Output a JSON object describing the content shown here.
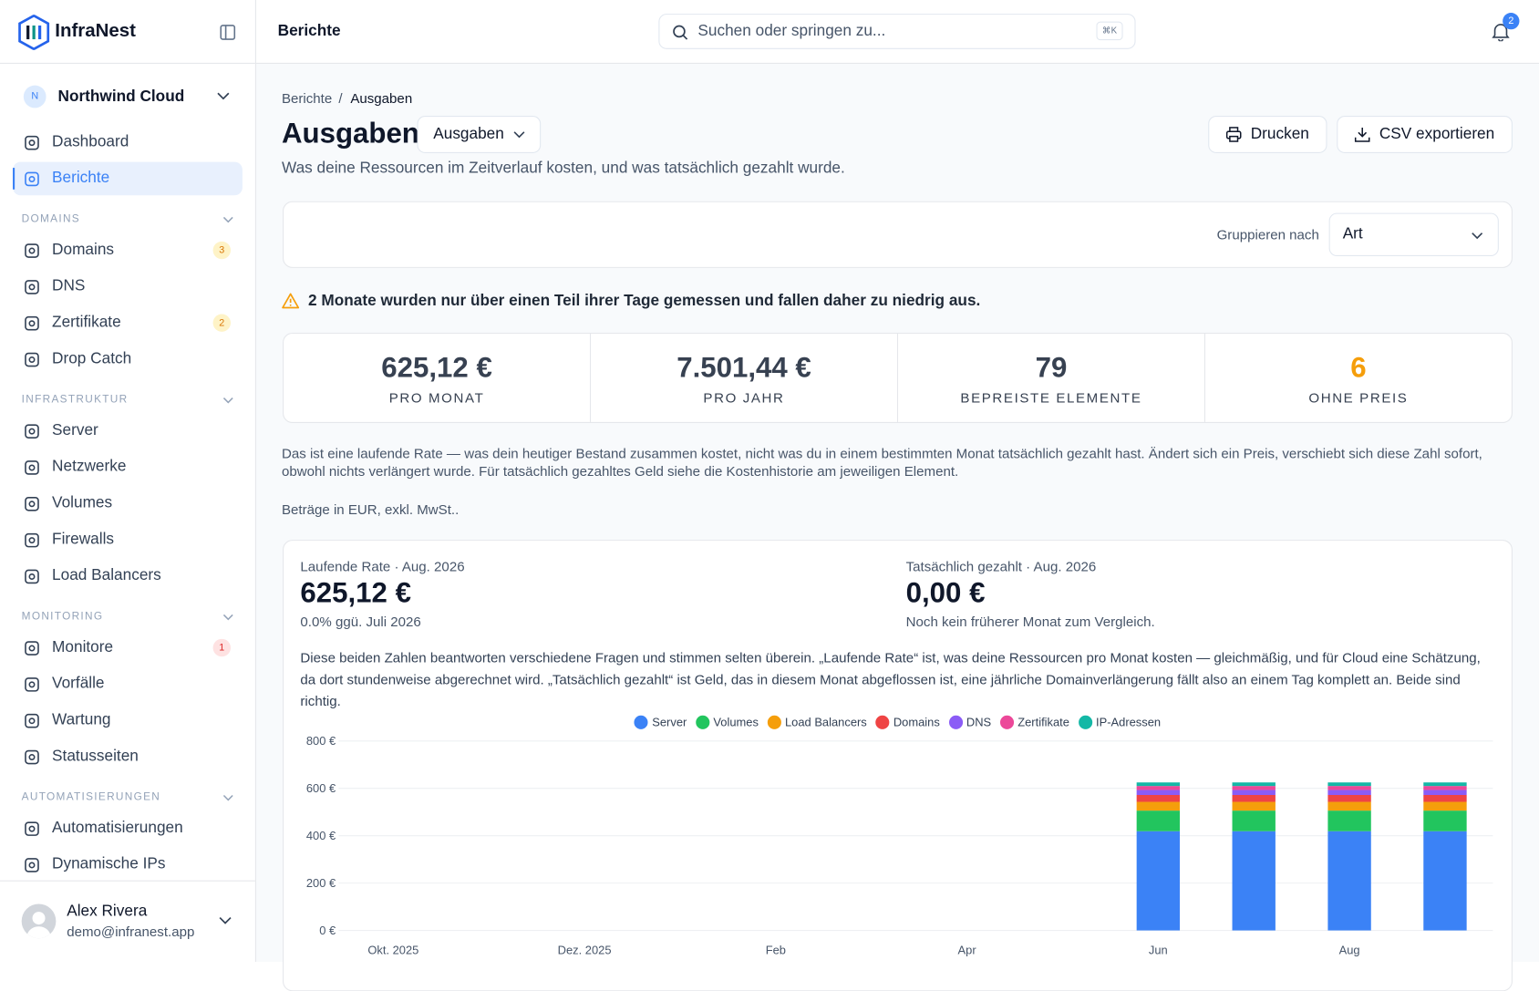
{
  "sidebar": {
    "brand": "InfraNest",
    "workspace_initial": "N",
    "workspace": "Northwind Cloud",
    "nav": [
      {
        "label": "Dashboard"
      },
      {
        "label": "Berichte",
        "active": true
      }
    ],
    "sections": [
      {
        "title": "DOMAINS",
        "items": [
          {
            "label": "Domains",
            "badge": 3
          },
          {
            "label": "DNS"
          },
          {
            "label": "Zertifikate",
            "badge": 2
          },
          {
            "label": "Drop Catch"
          }
        ]
      },
      {
        "title": "INFRASTRUKTUR",
        "items": [
          {
            "label": "Server"
          },
          {
            "label": "Netzwerke"
          },
          {
            "label": "Volumes"
          },
          {
            "label": "Firewalls"
          },
          {
            "label": "Load Balancers"
          }
        ]
      },
      {
        "title": "MONITORING",
        "items": [
          {
            "label": "Monitore",
            "badge": 1,
            "badge_color": "red"
          },
          {
            "label": "Vorfälle"
          },
          {
            "label": "Wartung"
          },
          {
            "label": "Statusseiten"
          }
        ]
      },
      {
        "title": "AUTOMATISIERUNGEN",
        "items": [
          {
            "label": "Automatisierungen"
          },
          {
            "label": "Dynamische IPs"
          }
        ]
      }
    ],
    "user": {
      "name": "Alex Rivera",
      "email": "demo@infranest.app"
    }
  },
  "header": {
    "title": "Berichte",
    "search_placeholder": "Suchen oder springen zu...",
    "shortcut": "⌘K",
    "notifications": 2
  },
  "breadcrumb": [
    "Berichte",
    "Ausgaben"
  ],
  "page": {
    "title": "Ausgaben",
    "view_select": "Ausgaben",
    "subtitle": "Was deine Ressourcen im Zeitverlauf kosten, und was tatsächlich gezahlt wurde.",
    "actions": [
      "Drucken",
      "CSV exportieren"
    ],
    "group_label": "Gruppieren nach",
    "group_value": "Art",
    "warning": "2 Monate wurden nur über einen Teil ihrer Tage gemessen und fallen daher zu niedrig aus.",
    "stats": [
      {
        "value": "625,12 €",
        "label": "PRO MONAT"
      },
      {
        "value": "7.501,44 €",
        "label": "PRO JAHR"
      },
      {
        "value": 79,
        "label": "BEPREISTE ELEMENTE"
      },
      {
        "value": 6,
        "label": "OHNE PREIS",
        "highlight": true
      }
    ],
    "note": "Das ist eine laufende Rate — was dein heutiger Bestand zusammen kostet, nicht was du in einem bestimmten Monat tatsächlich gezahlt hast. Ändert sich ein Preis, verschiebt sich diese Zahl sofort, obwohl nichts verlängert wurde. Für tatsächlich gezahltes Geld siehe die Kostenhistorie am jeweiligen Element.",
    "currency_note": "Beträge in EUR, exkl. MwSt..",
    "summary": {
      "left": {
        "label": "Laufende Rate · Aug. 2026",
        "value": "625,12 €",
        "detail": "0.0% ggü. Juli 2026"
      },
      "right": {
        "label": "Tatsächlich gezahlt · Aug. 2026",
        "value": "0,00 €",
        "detail": "Noch kein früherer Monat zum Vergleich."
      },
      "explanation": "Diese beiden Zahlen beantworten verschiedene Fragen und stimmen selten überein. „Laufende Rate“ ist, was deine Ressourcen pro Monat kosten — gleichmäßig, und für Cloud eine Schätzung, da dort stundenweise abgerechnet wird. „Tatsächlich gezahlt“ ist Geld, das in diesem Monat abgeflossen ist, eine jährliche Domainverlängerung fällt also an einem Tag komplett an. Beide sind richtig."
    }
  },
  "chart_data": {
    "type": "stacked_bar",
    "categories": [
      "Okt. 2025",
      null,
      "Dez. 2025",
      null,
      "Feb",
      null,
      "Apr",
      null,
      "Jun",
      null,
      "Aug",
      null
    ],
    "series": [
      {
        "name": "Server",
        "color": "#3b82f6",
        "values": [
          null,
          null,
          null,
          null,
          null,
          null,
          null,
          null,
          419,
          419,
          419,
          419
        ]
      },
      {
        "name": "Volumes",
        "color": "#22c55e",
        "values": [
          null,
          null,
          null,
          null,
          null,
          null,
          null,
          null,
          87,
          87,
          87,
          87
        ]
      },
      {
        "name": "Load Balancers",
        "color": "#f59e0b",
        "values": [
          null,
          null,
          null,
          null,
          null,
          null,
          null,
          null,
          37,
          37,
          37,
          37
        ]
      },
      {
        "name": "Domains",
        "color": "#ef4444",
        "values": [
          null,
          null,
          null,
          null,
          null,
          null,
          null,
          null,
          29,
          29,
          29,
          29
        ]
      },
      {
        "name": "DNS",
        "color": "#8b5cf6",
        "values": [
          null,
          null,
          null,
          null,
          null,
          null,
          null,
          null,
          21,
          21,
          21,
          21
        ]
      },
      {
        "name": "Zertifikate",
        "color": "#ec4899",
        "values": [
          null,
          null,
          null,
          null,
          null,
          null,
          null,
          null,
          17,
          17,
          17,
          17
        ]
      },
      {
        "name": "IP-Adressen",
        "color": "#14b8a6",
        "values": [
          null,
          null,
          null,
          null,
          null,
          null,
          null,
          null,
          15,
          15,
          15,
          15
        ]
      }
    ],
    "ylim": [
      0,
      800
    ],
    "yticks": [
      {
        "value": 0,
        "label": "0 €"
      },
      {
        "value": 200,
        "label": "200 €"
      },
      {
        "value": 400,
        "label": "400 €"
      },
      {
        "value": 600,
        "label": "600 €"
      },
      {
        "value": 800,
        "label": "800 €"
      }
    ],
    "grid": true
  }
}
